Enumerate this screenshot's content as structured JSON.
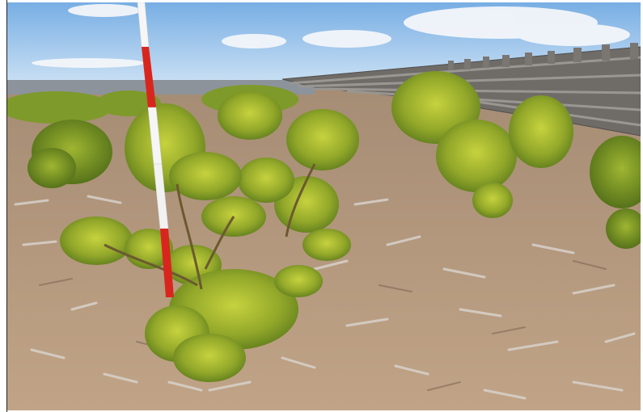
{
  "image": {
    "subject": "young-pine-seedlings-with-survey-pole",
    "colors": {
      "sky_top": "#7fb3e6",
      "sky_bottom": "#cfe3f4",
      "cloud": "#f4f7fb",
      "ground": "#b69a80",
      "ground_dark": "#8a7360",
      "mulch": "#d9d3cc",
      "pine_dark": "#5f7d1f",
      "pine_light": "#b8c73a",
      "pole_red": "#d8261e",
      "pole_white": "#f6f6f6",
      "fence": "#6e6a66"
    }
  }
}
